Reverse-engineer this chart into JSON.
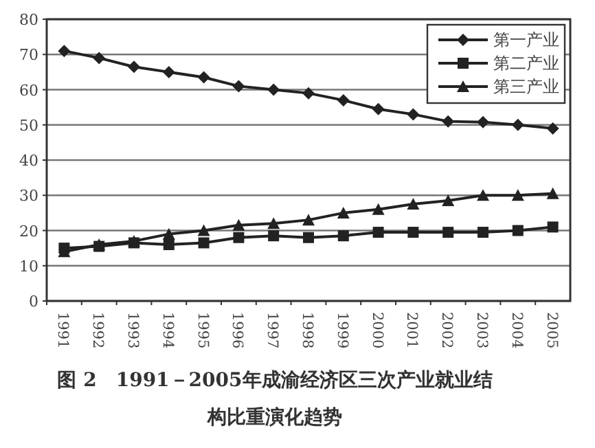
{
  "chart_data": {
    "type": "line",
    "title": "图 2　1991－2005年成渝经济区三次产业就业结构比重演化趋势",
    "categories": [
      "1991",
      "1992",
      "1993",
      "1994",
      "1995",
      "1996",
      "1997",
      "1998",
      "1999",
      "2000",
      "2001",
      "2002",
      "2003",
      "2004",
      "2005"
    ],
    "series": [
      {
        "name": "第一产业",
        "color": "#222222",
        "marker": "diamond",
        "values": [
          71,
          69,
          66.5,
          65,
          63.5,
          61,
          60,
          59,
          57,
          54.5,
          53,
          51,
          50.8,
          50,
          49
        ]
      },
      {
        "name": "第二产业",
        "color": "#222222",
        "marker": "square",
        "values": [
          15,
          15.5,
          16.5,
          16,
          16.5,
          18,
          18.5,
          18,
          18.5,
          19.5,
          19.5,
          19.5,
          19.5,
          20,
          21
        ]
      },
      {
        "name": "第三产业",
        "color": "#222222",
        "marker": "triangle",
        "values": [
          14,
          16,
          17,
          19,
          20,
          21.5,
          22,
          23,
          25,
          26,
          27.5,
          28.5,
          30,
          30,
          30.5
        ]
      }
    ],
    "ylim": [
      0,
      80
    ],
    "yticks": [
      0,
      10,
      20,
      30,
      40,
      50,
      60,
      70,
      80
    ],
    "grid": "y",
    "legend": "top right"
  }
}
